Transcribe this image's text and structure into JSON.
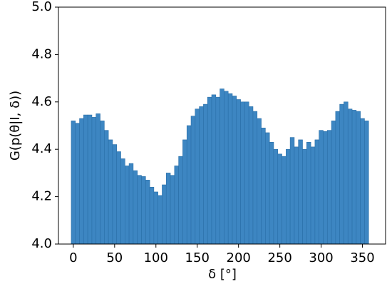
{
  "chart_data": {
    "type": "bar",
    "xlabel": "δ [°]",
    "ylabel": "G(p(θ|I, δ))",
    "x": [
      0,
      5,
      10,
      15,
      20,
      25,
      30,
      35,
      40,
      45,
      50,
      55,
      60,
      65,
      70,
      75,
      80,
      85,
      90,
      95,
      100,
      105,
      110,
      115,
      120,
      125,
      130,
      135,
      140,
      145,
      150,
      155,
      160,
      165,
      170,
      175,
      180,
      185,
      190,
      195,
      200,
      205,
      210,
      215,
      220,
      225,
      230,
      235,
      240,
      245,
      250,
      255,
      260,
      265,
      270,
      275,
      280,
      285,
      290,
      295,
      300,
      305,
      310,
      315,
      320,
      325,
      330,
      335,
      340,
      345,
      350,
      355
    ],
    "values": [
      4.52,
      4.51,
      4.53,
      4.545,
      4.545,
      4.535,
      4.55,
      4.52,
      4.48,
      4.44,
      4.42,
      4.39,
      4.36,
      4.33,
      4.34,
      4.31,
      4.29,
      4.285,
      4.27,
      4.24,
      4.22,
      4.205,
      4.25,
      4.3,
      4.29,
      4.33,
      4.37,
      4.44,
      4.5,
      4.54,
      4.57,
      4.58,
      4.59,
      4.62,
      4.63,
      4.62,
      4.655,
      4.645,
      4.635,
      4.625,
      4.61,
      4.6,
      4.6,
      4.58,
      4.56,
      4.53,
      4.49,
      4.47,
      4.43,
      4.4,
      4.38,
      4.37,
      4.4,
      4.45,
      4.41,
      4.44,
      4.4,
      4.43,
      4.41,
      4.44,
      4.48,
      4.475,
      4.48,
      4.52,
      4.56,
      4.59,
      4.6,
      4.57,
      4.565,
      4.56,
      4.53,
      4.52
    ],
    "color": "#3d86c2",
    "xlim": [
      -18,
      378
    ],
    "xticks": [
      0,
      50,
      100,
      150,
      200,
      250,
      300,
      350
    ],
    "ylim": [
      4.0,
      5.0
    ],
    "yticks": [
      {
        "value": 4.0,
        "label": "4.0"
      },
      {
        "value": 4.2,
        "label": "4.2"
      },
      {
        "value": 4.4,
        "label": "4.4"
      },
      {
        "value": 4.6,
        "label": "4.6"
      },
      {
        "value": 4.8,
        "label": "4.8"
      },
      {
        "value": 5.0,
        "label": "5.0"
      }
    ]
  }
}
